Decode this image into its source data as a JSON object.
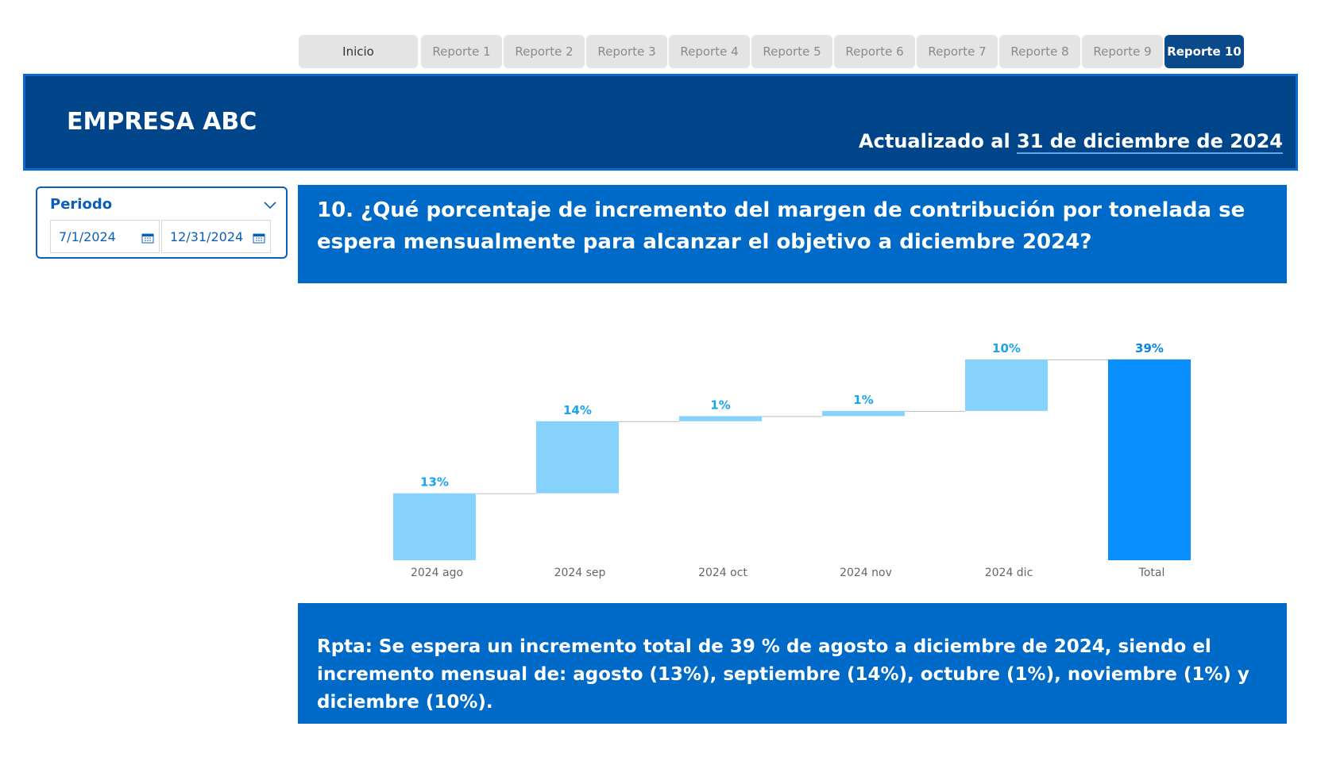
{
  "nav": {
    "tabs": [
      {
        "label": "Inicio",
        "active": false
      },
      {
        "label": "Reporte 1",
        "active": false
      },
      {
        "label": "Reporte 2",
        "active": false
      },
      {
        "label": "Reporte 3",
        "active": false
      },
      {
        "label": "Reporte 4",
        "active": false
      },
      {
        "label": "Reporte 5",
        "active": false
      },
      {
        "label": "Reporte 6",
        "active": false
      },
      {
        "label": "Reporte 7",
        "active": false
      },
      {
        "label": "Reporte 8",
        "active": false
      },
      {
        "label": "Reporte 9",
        "active": false
      },
      {
        "label": "Reporte 10",
        "active": true
      }
    ]
  },
  "header": {
    "company": "EMPRESA ABC",
    "updated_prefix": "Actualizado al",
    "updated_date": "31 de diciembre de 2024"
  },
  "filter": {
    "title": "Periodo",
    "start_date": "7/1/2024",
    "end_date": "12/31/2024",
    "icons": {
      "toggle": "chevron-down-icon",
      "calendar": "calendar-icon"
    }
  },
  "question": {
    "text": "10. ¿Qué porcentaje de incremento del margen de contribución por tonelada se espera mensualmente para alcanzar el objetivo a diciembre 2024?"
  },
  "answer": {
    "text": "Rpta: Se espera un incremento total de 39 % de agosto a diciembre de 2024, siendo el incremento mensual de: agosto (13%), septiembre (14%), octubre (1%), noviembre (1%) y diciembre (10%)."
  },
  "chart_data": {
    "type": "bar",
    "subtype": "waterfall",
    "categories": [
      "2024 ago",
      "2024 sep",
      "2024 oct",
      "2024 nov",
      "2024 dic",
      "Total"
    ],
    "values": [
      13,
      14,
      1,
      1,
      10,
      39
    ],
    "labels": [
      "13%",
      "14%",
      "1%",
      "1%",
      "10%",
      "39%"
    ],
    "total_index": 5,
    "unit": "%",
    "grid": false,
    "colors": {
      "increase": "#87d2fc",
      "total": "#068ffd",
      "label": "#1aa4f0",
      "total_label": "#0a86e8",
      "connector": "#bdbdbd",
      "category_text": "#666666"
    }
  },
  "theme": {
    "header_bg": "#00458a",
    "panel_bg": "#006ac8",
    "active_tab": "#0a4a8a",
    "inactive_tab": "#e4e4e4"
  }
}
